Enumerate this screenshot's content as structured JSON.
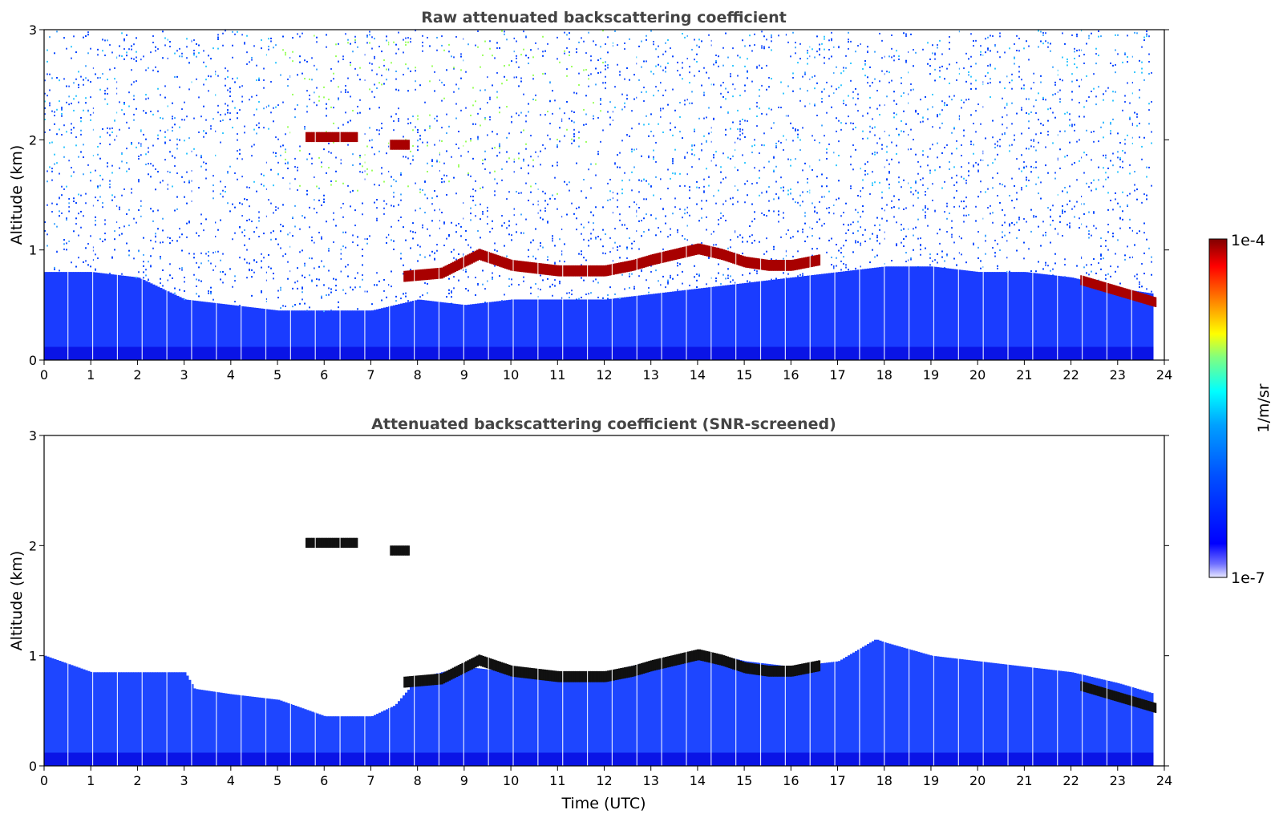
{
  "chart_data": [
    {
      "type": "heatmap",
      "title": "Raw attenuated backscattering coefficient",
      "xlabel": "",
      "ylabel": "Altitude (km)",
      "xlim": [
        0,
        24
      ],
      "ylim": [
        0,
        3
      ],
      "xticks": [
        "0",
        "1",
        "2",
        "3",
        "4",
        "5",
        "6",
        "7",
        "8",
        "9",
        "10",
        "11",
        "12",
        "13",
        "14",
        "15",
        "16",
        "17",
        "18",
        "19",
        "20",
        "21",
        "22",
        "23",
        "24"
      ],
      "yticks": [
        "0",
        "1",
        "2",
        "3"
      ],
      "features": {
        "boundary_layer_top_km": [
          [
            0,
            0.8
          ],
          [
            1,
            0.8
          ],
          [
            2,
            0.75
          ],
          [
            3,
            0.55
          ],
          [
            4,
            0.5
          ],
          [
            5,
            0.45
          ],
          [
            6,
            0.45
          ],
          [
            7,
            0.45
          ],
          [
            8,
            0.55
          ],
          [
            9,
            0.5
          ],
          [
            10,
            0.55
          ],
          [
            11,
            0.55
          ],
          [
            12,
            0.55
          ],
          [
            13,
            0.6
          ],
          [
            14,
            0.65
          ],
          [
            15,
            0.7
          ],
          [
            16,
            0.75
          ],
          [
            17,
            0.8
          ],
          [
            18,
            0.85
          ],
          [
            19,
            0.85
          ],
          [
            20,
            0.8
          ],
          [
            21,
            0.8
          ],
          [
            22,
            0.75
          ],
          [
            23,
            0.65
          ],
          [
            23.8,
            0.6
          ]
        ],
        "cloud_layer_km": [
          [
            7.7,
            0.75
          ],
          [
            8.5,
            0.78
          ],
          [
            9.3,
            0.95
          ],
          [
            10,
            0.85
          ],
          [
            11,
            0.8
          ],
          [
            12,
            0.8
          ],
          [
            12.6,
            0.85
          ],
          [
            13,
            0.9
          ],
          [
            13.5,
            0.95
          ],
          [
            14,
            1.0
          ],
          [
            14.5,
            0.95
          ],
          [
            15,
            0.88
          ],
          [
            15.5,
            0.85
          ],
          [
            16,
            0.85
          ],
          [
            16.6,
            0.9
          ]
        ],
        "elevated_cloud_segments": [
          {
            "t0": 5.6,
            "t1": 6.7,
            "alt": 2.02
          },
          {
            "t0": 7.4,
            "t1": 7.8,
            "alt": 1.95
          },
          {
            "t0": 22.2,
            "t1": 23.8,
            "alt_start": 0.72,
            "alt_end": 0.52
          }
        ],
        "data_end_hour": 23.8
      }
    },
    {
      "type": "heatmap",
      "title": "Attenuated backscattering coefficient (SNR-screened)",
      "xlabel": "Time (UTC)",
      "ylabel": "Altitude (km)",
      "xlim": [
        0,
        24
      ],
      "ylim": [
        0,
        3
      ],
      "xticks": [
        "0",
        "1",
        "2",
        "3",
        "4",
        "5",
        "6",
        "7",
        "8",
        "9",
        "10",
        "11",
        "12",
        "13",
        "14",
        "15",
        "16",
        "17",
        "18",
        "19",
        "20",
        "21",
        "22",
        "23",
        "24"
      ],
      "yticks": [
        "0",
        "1",
        "2",
        "3"
      ],
      "features": {
        "screened_top_km": [
          [
            0,
            1.0
          ],
          [
            1,
            0.85
          ],
          [
            2,
            0.85
          ],
          [
            3,
            0.85
          ],
          [
            3.2,
            0.7
          ],
          [
            4,
            0.65
          ],
          [
            5,
            0.6
          ],
          [
            6,
            0.45
          ],
          [
            7,
            0.45
          ],
          [
            7.5,
            0.55
          ],
          [
            8,
            0.8
          ],
          [
            9,
            0.9
          ],
          [
            10,
            0.85
          ],
          [
            11,
            0.8
          ],
          [
            12,
            0.85
          ],
          [
            13,
            0.95
          ],
          [
            14,
            1.05
          ],
          [
            15,
            0.95
          ],
          [
            16,
            0.9
          ],
          [
            17,
            0.95
          ],
          [
            17.8,
            1.15
          ],
          [
            18,
            1.12
          ],
          [
            19,
            1.0
          ],
          [
            20,
            0.95
          ],
          [
            21,
            0.9
          ],
          [
            22,
            0.85
          ],
          [
            23,
            0.75
          ],
          [
            23.8,
            0.65
          ]
        ],
        "data_end_hour": 23.8
      }
    }
  ],
  "colorbar": {
    "label": "1/m/sr",
    "max_label": "1e-4",
    "min_label": "1e-7",
    "scale": "log",
    "colormap": "jet",
    "colors": [
      "#e8e8ff",
      "#0000ff",
      "#00a0ff",
      "#00ffff",
      "#ffff00",
      "#ff8000",
      "#ff0000",
      "#800000"
    ]
  }
}
